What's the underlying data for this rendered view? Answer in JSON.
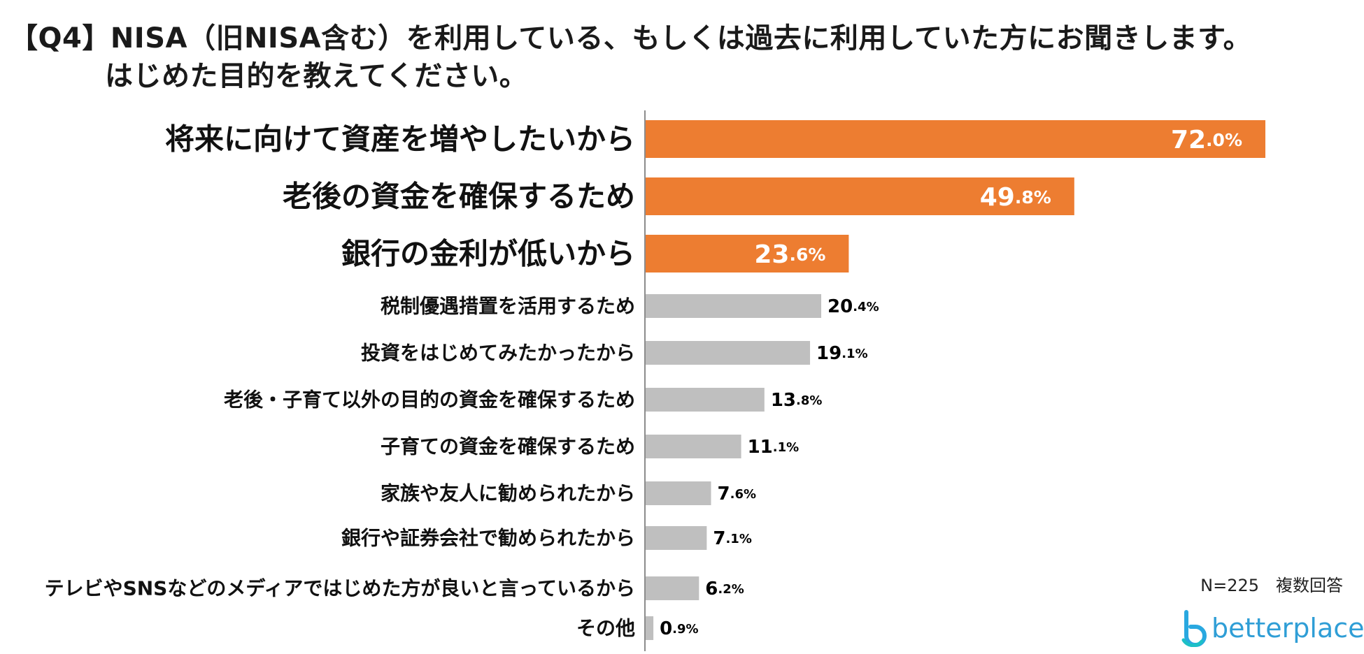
{
  "title": {
    "line1": "【Q4】NISA（旧NISA含む）を利用している、もしくは過去に利用していた方にお聞きします。",
    "line2": "はじめた目的を教えてください。"
  },
  "note": "N=225　複数回答",
  "logo": {
    "text": "betterplace",
    "icon": "betterplace-logo-icon",
    "color": "#2f9ed6"
  },
  "colors": {
    "highlight": "#ED7D31",
    "normal": "#BFBFBF",
    "highlight_label": "#ffffff",
    "normal_label": "#000000"
  },
  "chart_data": {
    "type": "bar",
    "orientation": "horizontal",
    "unit": "%",
    "categories": [
      "将来に向けて資産を増やしたいから",
      "老後の資金を確保するため",
      "銀行の金利が低いから",
      "税制優遇措置を活用するため",
      "投資をはじめてみたかったから",
      "老後・子育て以外の目的の資金を確保するため",
      "子育ての資金を確保するため",
      "家族や友人に勧められたから",
      "銀行や証券会社で勧められたから",
      "テレビやSNSなどのメディアではじめた方が良いと言っているから",
      "その他"
    ],
    "values": [
      72.0,
      49.8,
      23.6,
      20.4,
      19.1,
      13.8,
      11.1,
      7.6,
      7.1,
      6.2,
      0.9
    ],
    "highlighted_count": 3,
    "xlim": [
      0,
      80
    ],
    "grid": false,
    "legend": "none"
  }
}
